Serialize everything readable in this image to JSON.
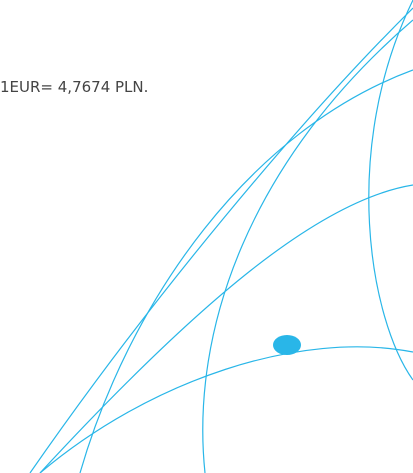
{
  "text": "1EUR= 4,7674 PLN."
}
